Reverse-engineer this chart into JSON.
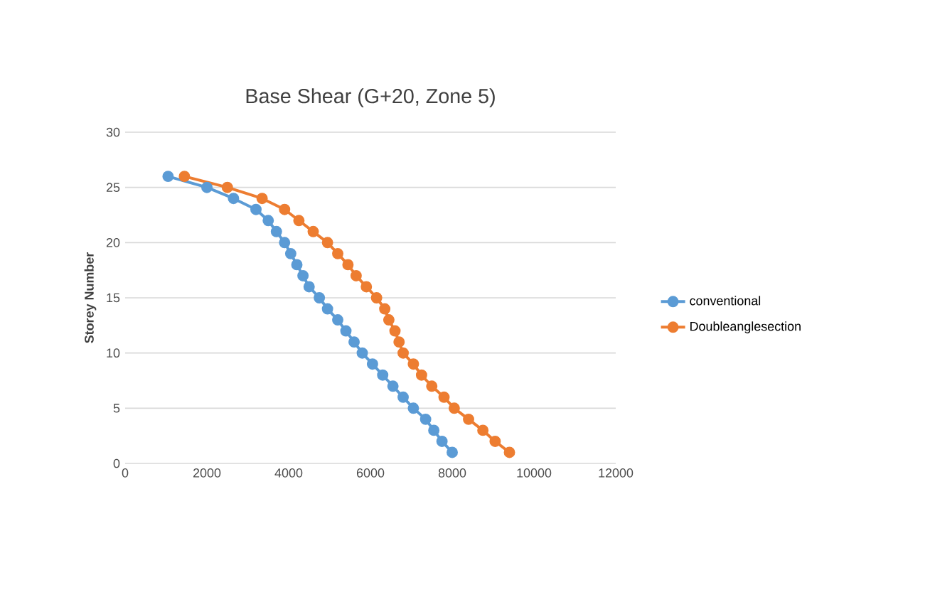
{
  "chart_data": {
    "type": "line",
    "title": "Base Shear (G+20, Zone 5)",
    "ylabel": "Storey Number",
    "xlim": [
      0,
      12000
    ],
    "xticks": [
      0,
      2000,
      4000,
      6000,
      8000,
      10000,
      12000
    ],
    "ylim": [
      0,
      30
    ],
    "yticks": [
      0,
      5,
      10,
      15,
      20,
      25,
      30
    ],
    "grid": "y",
    "legend": "right",
    "marker": "circle",
    "line_style": "solid",
    "series": [
      {
        "name": "conventional",
        "color": "#5b9bd5",
        "x": [
          8000,
          7750,
          7550,
          7350,
          7050,
          6800,
          6550,
          6300,
          6050,
          5800,
          5600,
          5400,
          5200,
          4950,
          4750,
          4500,
          4350,
          4200,
          4050,
          3900,
          3700,
          3500,
          3200,
          2650,
          2000,
          1050
        ],
        "values": [
          1,
          2,
          3,
          4,
          5,
          6,
          7,
          8,
          9,
          10,
          11,
          12,
          13,
          14,
          15,
          16,
          17,
          18,
          19,
          20,
          21,
          22,
          23,
          24,
          25,
          26
        ]
      },
      {
        "name": "Doubleanglesection",
        "color": "#ed7d31",
        "x": [
          9400,
          9050,
          8750,
          8400,
          8050,
          7800,
          7500,
          7250,
          7050,
          6800,
          6700,
          6600,
          6450,
          6350,
          6150,
          5900,
          5650,
          5450,
          5200,
          4950,
          4600,
          4250,
          3900,
          3350,
          2500,
          1450
        ],
        "values": [
          1,
          2,
          3,
          4,
          5,
          6,
          7,
          8,
          9,
          10,
          11,
          12,
          13,
          14,
          15,
          16,
          17,
          18,
          19,
          20,
          21,
          22,
          23,
          24,
          25,
          26
        ]
      }
    ]
  }
}
